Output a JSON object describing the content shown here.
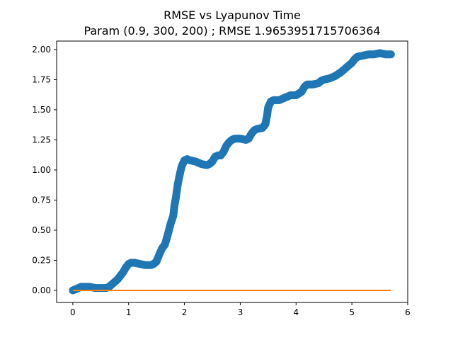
{
  "chart_data": {
    "type": "scatter",
    "title": "RMSE vs Lyapunov Time",
    "subtitle": "Param (0.9, 300, 200) ; RMSE 1.9653951715706364",
    "xlabel": "",
    "ylabel": "",
    "xlim": [
      -0.29,
      6.0
    ],
    "ylim": [
      -0.1,
      2.07
    ],
    "xticks": [
      0,
      1,
      2,
      3,
      4,
      5,
      6
    ],
    "yticks": [
      0.0,
      0.25,
      0.5,
      0.75,
      1.0,
      1.25,
      1.5,
      1.75,
      2.0
    ],
    "grid": false,
    "legend": "none",
    "colors": {
      "series_rmse": "#1f77b4",
      "series_baseline": "#ff7f0e"
    },
    "series": [
      {
        "kind": "scatter",
        "points": [
          [
            0.0,
            0.0
          ],
          [
            0.05,
            0.01
          ],
          [
            0.1,
            0.02
          ],
          [
            0.15,
            0.03
          ],
          [
            0.2,
            0.03
          ],
          [
            0.3,
            0.03
          ],
          [
            0.4,
            0.02
          ],
          [
            0.5,
            0.02
          ],
          [
            0.6,
            0.02
          ],
          [
            0.65,
            0.03
          ],
          [
            0.7,
            0.05
          ],
          [
            0.75,
            0.07
          ],
          [
            0.8,
            0.09
          ],
          [
            0.85,
            0.12
          ],
          [
            0.9,
            0.15
          ],
          [
            0.95,
            0.19
          ],
          [
            1.0,
            0.22
          ],
          [
            1.05,
            0.23
          ],
          [
            1.1,
            0.23
          ],
          [
            1.2,
            0.22
          ],
          [
            1.3,
            0.21
          ],
          [
            1.35,
            0.21
          ],
          [
            1.4,
            0.21
          ],
          [
            1.45,
            0.22
          ],
          [
            1.5,
            0.24
          ],
          [
            1.55,
            0.3
          ],
          [
            1.6,
            0.35
          ],
          [
            1.65,
            0.38
          ],
          [
            1.7,
            0.46
          ],
          [
            1.75,
            0.55
          ],
          [
            1.8,
            0.62
          ],
          [
            1.82,
            0.7
          ],
          [
            1.85,
            0.78
          ],
          [
            1.88,
            0.88
          ],
          [
            1.92,
            0.97
          ],
          [
            1.95,
            1.03
          ],
          [
            2.0,
            1.08
          ],
          [
            2.05,
            1.09
          ],
          [
            2.1,
            1.08
          ],
          [
            2.2,
            1.07
          ],
          [
            2.3,
            1.05
          ],
          [
            2.4,
            1.04
          ],
          [
            2.45,
            1.05
          ],
          [
            2.5,
            1.07
          ],
          [
            2.55,
            1.11
          ],
          [
            2.6,
            1.12
          ],
          [
            2.65,
            1.12
          ],
          [
            2.7,
            1.15
          ],
          [
            2.75,
            1.2
          ],
          [
            2.8,
            1.23
          ],
          [
            2.85,
            1.25
          ],
          [
            2.9,
            1.26
          ],
          [
            3.0,
            1.26
          ],
          [
            3.1,
            1.25
          ],
          [
            3.15,
            1.26
          ],
          [
            3.2,
            1.3
          ],
          [
            3.25,
            1.33
          ],
          [
            3.3,
            1.34
          ],
          [
            3.4,
            1.35
          ],
          [
            3.45,
            1.38
          ],
          [
            3.48,
            1.45
          ],
          [
            3.5,
            1.52
          ],
          [
            3.55,
            1.57
          ],
          [
            3.6,
            1.58
          ],
          [
            3.7,
            1.58
          ],
          [
            3.8,
            1.6
          ],
          [
            3.9,
            1.62
          ],
          [
            4.0,
            1.62
          ],
          [
            4.1,
            1.65
          ],
          [
            4.15,
            1.69
          ],
          [
            4.2,
            1.71
          ],
          [
            4.3,
            1.71
          ],
          [
            4.4,
            1.72
          ],
          [
            4.45,
            1.74
          ],
          [
            4.5,
            1.75
          ],
          [
            4.6,
            1.76
          ],
          [
            4.7,
            1.78
          ],
          [
            4.8,
            1.81
          ],
          [
            4.9,
            1.85
          ],
          [
            5.0,
            1.89
          ],
          [
            5.05,
            1.92
          ],
          [
            5.1,
            1.94
          ],
          [
            5.2,
            1.95
          ],
          [
            5.3,
            1.96
          ],
          [
            5.4,
            1.96
          ],
          [
            5.5,
            1.97
          ],
          [
            5.6,
            1.96
          ],
          [
            5.7,
            1.96
          ]
        ]
      },
      {
        "kind": "line",
        "points": [
          [
            0.0,
            0.0
          ],
          [
            5.7,
            0.0
          ]
        ]
      }
    ]
  }
}
